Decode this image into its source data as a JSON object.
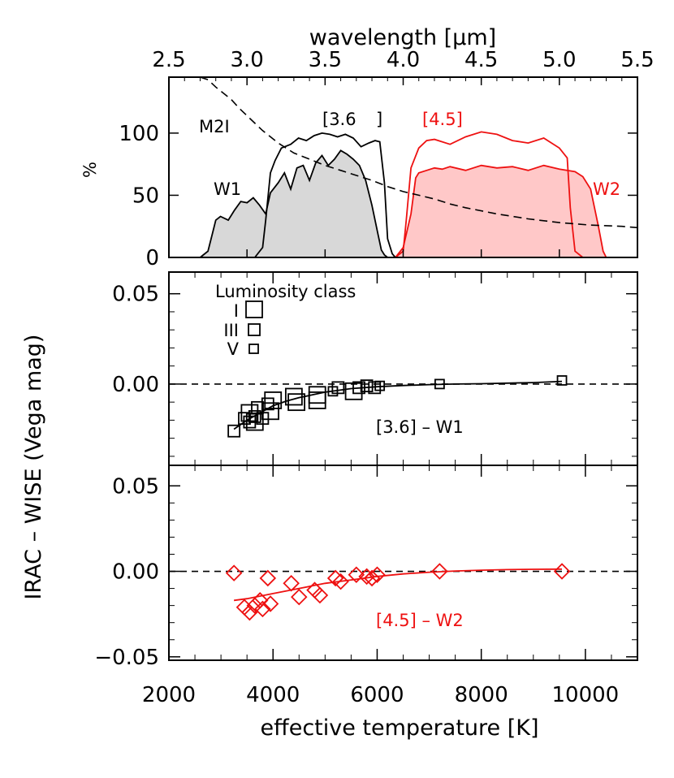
{
  "colors": {
    "black": "#000000",
    "red": "#ee1111",
    "gray_fill": "#d8d8d8",
    "pink_fill": "#ffc8c8"
  },
  "chart_data": [
    {
      "type": "line",
      "panel": "filter-transmission",
      "xlabel": "wavelength [μm]",
      "ylabel": "%",
      "xlim": [
        2.5,
        5.5
      ],
      "ylim": [
        0,
        145
      ],
      "xticks": [
        "2.5",
        "3.0",
        "3.5",
        "4.0",
        "4.5",
        "5.0",
        "5.5"
      ],
      "yticks": [
        "0",
        "50",
        "100"
      ],
      "labels": {
        "m2i": "M2I",
        "w1": "W1",
        "w2": "W2",
        "irac36": "[3.6",
        "irac45": "[4.5]"
      },
      "series": [
        {
          "name": "W1",
          "x": [
            2.7,
            2.75,
            2.78,
            2.8,
            2.83,
            2.88,
            2.92,
            2.96,
            3.0,
            3.04,
            3.08,
            3.12,
            3.15,
            3.2,
            3.24,
            3.28,
            3.32,
            3.36,
            3.4,
            3.44,
            3.48,
            3.52,
            3.56,
            3.6,
            3.64,
            3.68,
            3.72,
            3.76,
            3.8,
            3.84,
            3.86,
            3.88,
            3.9
          ],
          "y": [
            0,
            5,
            20,
            30,
            33,
            30,
            38,
            45,
            44,
            48,
            42,
            35,
            52,
            60,
            68,
            55,
            72,
            74,
            62,
            76,
            82,
            74,
            79,
            86,
            83,
            79,
            74,
            62,
            42,
            18,
            6,
            2,
            0
          ]
        },
        {
          "name": "[3.6]",
          "x": [
            3.05,
            3.1,
            3.12,
            3.15,
            3.18,
            3.22,
            3.28,
            3.33,
            3.38,
            3.43,
            3.48,
            3.53,
            3.58,
            3.63,
            3.68,
            3.73,
            3.78,
            3.82,
            3.85,
            3.88,
            3.9,
            3.93,
            3.95
          ],
          "y": [
            0,
            8,
            30,
            68,
            78,
            88,
            91,
            96,
            94,
            98,
            100,
            99,
            97,
            99,
            96,
            89,
            92,
            94,
            93,
            60,
            15,
            3,
            0
          ]
        },
        {
          "name": "[4.5]",
          "x": [
            3.95,
            4.0,
            4.02,
            4.05,
            4.1,
            4.15,
            4.2,
            4.3,
            4.4,
            4.5,
            4.6,
            4.7,
            4.8,
            4.9,
            5.0,
            5.05,
            5.07,
            5.1,
            5.15
          ],
          "y": [
            0,
            5,
            30,
            72,
            88,
            94,
            95,
            91,
            97,
            101,
            99,
            94,
            92,
            96,
            88,
            80,
            40,
            5,
            0
          ]
        },
        {
          "name": "W2",
          "x": [
            3.95,
            4.0,
            4.05,
            4.08,
            4.1,
            4.15,
            4.2,
            4.25,
            4.3,
            4.4,
            4.5,
            4.6,
            4.7,
            4.8,
            4.9,
            5.0,
            5.1,
            5.15,
            5.2,
            5.25,
            5.28,
            5.3
          ],
          "y": [
            0,
            8,
            35,
            64,
            68,
            70,
            72,
            71,
            73,
            70,
            74,
            72,
            73,
            70,
            74,
            71,
            69,
            65,
            55,
            25,
            5,
            0
          ]
        },
        {
          "name": "M2I",
          "x": [
            2.7,
            2.75,
            2.8,
            2.85,
            2.9,
            2.95,
            3.0,
            3.1,
            3.2,
            3.3,
            3.4,
            3.5,
            3.6,
            3.7,
            3.8,
            3.9,
            4.0,
            4.1,
            4.2,
            4.3,
            4.4,
            4.6,
            4.8,
            5.0,
            5.2,
            5.4,
            5.5
          ],
          "y": [
            148,
            143,
            137,
            132,
            127,
            120,
            114,
            102,
            92,
            84,
            79,
            74,
            70,
            66,
            62,
            57,
            53,
            50,
            47,
            43,
            40,
            35,
            31,
            28,
            26,
            25,
            24
          ]
        }
      ]
    },
    {
      "type": "scatter",
      "panel": "irac-minus-w1",
      "xlim": [
        2000,
        11000
      ],
      "ylim": [
        -0.045,
        0.062
      ],
      "yticks": [
        "0.00",
        "0.05"
      ],
      "legend": {
        "title": "Luminosity class",
        "classes": [
          "I",
          "III",
          "V"
        ]
      },
      "annotation": "[3.6] – W1",
      "points": [
        {
          "x": 3250,
          "y": -0.026,
          "class": "III"
        },
        {
          "x": 3450,
          "y": -0.019,
          "class": "III"
        },
        {
          "x": 3550,
          "y": -0.021,
          "class": "III"
        },
        {
          "x": 3650,
          "y": -0.018,
          "class": "III"
        },
        {
          "x": 3700,
          "y": -0.013,
          "class": "III"
        },
        {
          "x": 3800,
          "y": -0.019,
          "class": "III"
        },
        {
          "x": 3900,
          "y": -0.011,
          "class": "III"
        },
        {
          "x": 3550,
          "y": -0.016,
          "class": "I"
        },
        {
          "x": 3650,
          "y": -0.021,
          "class": "I"
        },
        {
          "x": 3950,
          "y": -0.015,
          "class": "I"
        },
        {
          "x": 4000,
          "y": -0.009,
          "class": "I"
        },
        {
          "x": 4400,
          "y": -0.007,
          "class": "I"
        },
        {
          "x": 4450,
          "y": -0.01,
          "class": "I"
        },
        {
          "x": 4850,
          "y": -0.006,
          "class": "I"
        },
        {
          "x": 4850,
          "y": -0.009,
          "class": "I"
        },
        {
          "x": 5150,
          "y": -0.004,
          "class": "V"
        },
        {
          "x": 5250,
          "y": -0.002,
          "class": "III"
        },
        {
          "x": 5550,
          "y": -0.004,
          "class": "I"
        },
        {
          "x": 5650,
          "y": -0.002,
          "class": "III"
        },
        {
          "x": 5800,
          "y": -0.001,
          "class": "III"
        },
        {
          "x": 5950,
          "y": -0.002,
          "class": "III"
        },
        {
          "x": 6050,
          "y": -0.001,
          "class": "V"
        },
        {
          "x": 7200,
          "y": 0.0,
          "class": "V"
        },
        {
          "x": 9550,
          "y": 0.002,
          "class": "V"
        }
      ],
      "fit": {
        "x": [
          3250,
          3500,
          3750,
          4000,
          4250,
          4500,
          4750,
          5000,
          5500,
          6000,
          6500,
          7000,
          7500,
          8000,
          8500,
          9000,
          9550
        ],
        "y": [
          -0.025,
          -0.02,
          -0.016,
          -0.012,
          -0.0095,
          -0.0075,
          -0.006,
          -0.0045,
          -0.0025,
          -0.0015,
          -0.0008,
          -0.0003,
          0.0,
          0.0002,
          0.0005,
          0.0008,
          0.0015
        ]
      }
    },
    {
      "type": "scatter",
      "panel": "irac-minus-w2",
      "xlabel": "effective temperature [K]",
      "xlim": [
        2000,
        11000
      ],
      "ylim": [
        -0.052,
        0.062
      ],
      "xticks": [
        "2000",
        "4000",
        "6000",
        "8000",
        "10000"
      ],
      "yticks": [
        "−0.05",
        "0.00",
        "0.05"
      ],
      "annotation": "[4.5] – W2",
      "points": [
        {
          "x": 3250,
          "y": -0.001
        },
        {
          "x": 3450,
          "y": -0.021
        },
        {
          "x": 3550,
          "y": -0.024
        },
        {
          "x": 3650,
          "y": -0.02
        },
        {
          "x": 3750,
          "y": -0.017
        },
        {
          "x": 3800,
          "y": -0.022
        },
        {
          "x": 3900,
          "y": -0.004
        },
        {
          "x": 3950,
          "y": -0.019
        },
        {
          "x": 4350,
          "y": -0.007
        },
        {
          "x": 4500,
          "y": -0.015
        },
        {
          "x": 4800,
          "y": -0.011
        },
        {
          "x": 4900,
          "y": -0.014
        },
        {
          "x": 5200,
          "y": -0.004
        },
        {
          "x": 5300,
          "y": -0.006
        },
        {
          "x": 5600,
          "y": -0.002
        },
        {
          "x": 5800,
          "y": -0.003
        },
        {
          "x": 5900,
          "y": -0.004
        },
        {
          "x": 6000,
          "y": -0.002
        },
        {
          "x": 7200,
          "y": 0.0
        },
        {
          "x": 9550,
          "y": 0.0
        }
      ],
      "fit": {
        "x": [
          3250,
          3500,
          4000,
          4500,
          5000,
          5500,
          6000,
          6500,
          7000,
          7500,
          8000,
          8500,
          9000,
          9550
        ],
        "y": [
          -0.017,
          -0.016,
          -0.013,
          -0.01,
          -0.007,
          -0.005,
          -0.003,
          -0.0015,
          -0.0005,
          0.0002,
          0.0007,
          0.001,
          0.0012,
          0.0013
        ]
      }
    }
  ],
  "shared_ylabel": "IRAC – WISE (Vega mag)"
}
